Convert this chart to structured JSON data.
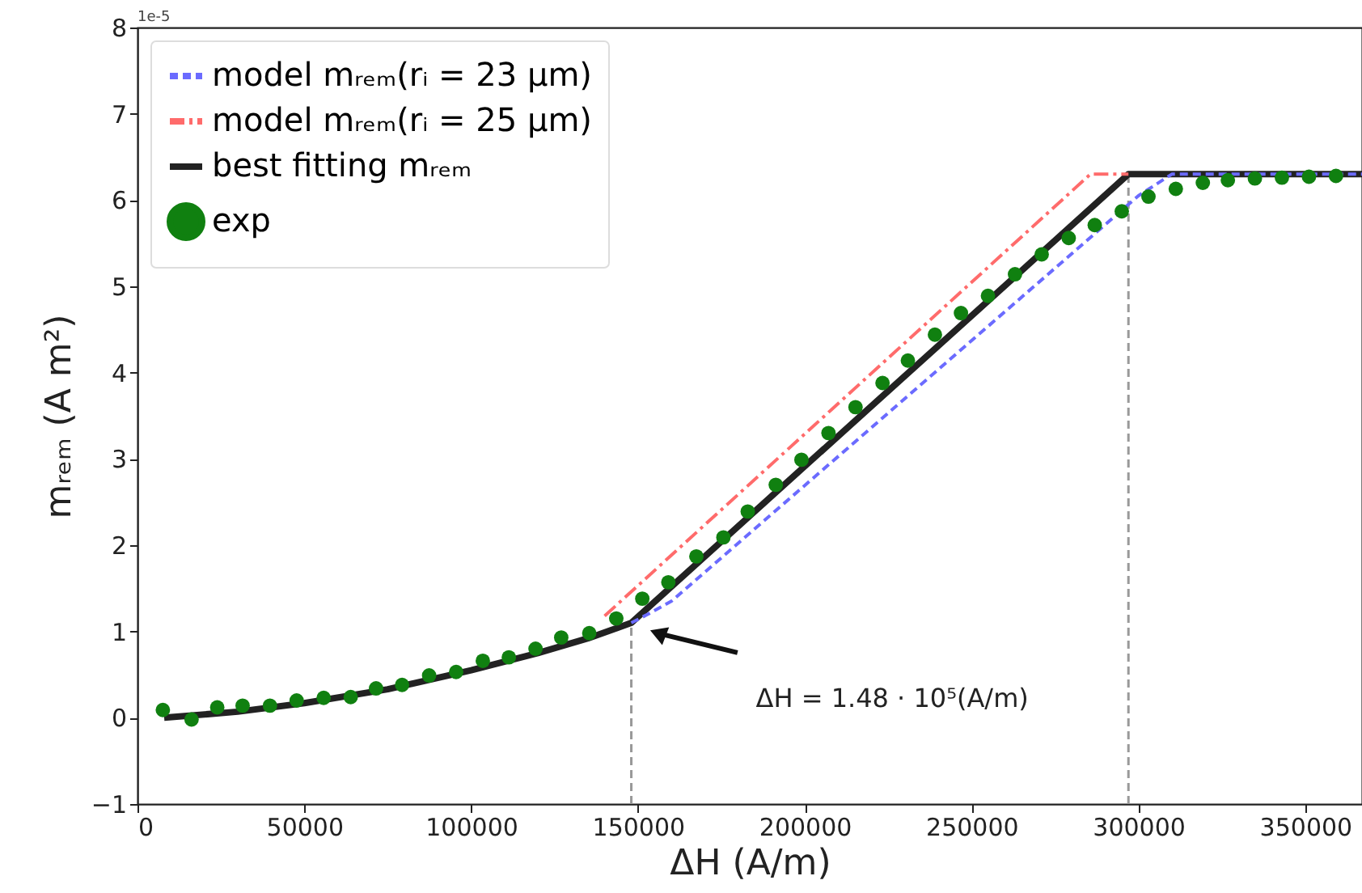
{
  "chart_data": {
    "type": "line",
    "xlabel": "ΔH (A/m)",
    "ylabel": "mᵣₑₘ (A m²)",
    "xlim": [
      0,
      367000
    ],
    "xticks": [
      0,
      50000,
      100000,
      150000,
      200000,
      250000,
      300000,
      350000
    ],
    "ylim": [
      -1,
      8
    ],
    "yticks": [
      -1,
      0,
      1,
      2,
      3,
      4,
      5,
      6,
      7,
      8
    ],
    "legend": "top left",
    "series": [
      {
        "name": "model mᵣₑₘ(rᵢ = 23 μm)",
        "type": "line",
        "line_style": "dashed",
        "color": "#6b6bff",
        "x": [
          148000,
          153000,
          160000,
          300000,
          310000,
          367000
        ],
        "values": [
          1.1,
          1.2,
          1.35,
          6.05,
          6.3,
          6.3
        ]
      },
      {
        "name": "model mᵣₑₘ(rᵢ = 25 μm)",
        "type": "line",
        "line_style": "dashdot",
        "color": "#ff6b6b",
        "x": [
          140000,
          285600,
          297000
        ],
        "values": [
          1.18,
          6.3,
          6.3
        ]
      },
      {
        "name": "best fitting mᵣₑₘ",
        "type": "line",
        "line_style": "solid",
        "color": "#222222",
        "x": [
          8000,
          30000,
          50000,
          75000,
          100000,
          120000,
          135000,
          148000,
          297000,
          367000
        ],
        "values": [
          0,
          0.07,
          0.17,
          0.33,
          0.55,
          0.75,
          0.92,
          1.1,
          6.3,
          6.3
        ]
      },
      {
        "name": "exp",
        "type": "scatter",
        "marker": "circle",
        "color": "#108010",
        "x": [
          7600,
          16200,
          23900,
          31500,
          39700,
          47700,
          55800,
          63900,
          71500,
          79300,
          87400,
          95500,
          103500,
          111300,
          119300,
          127000,
          135400,
          143500,
          151300,
          159100,
          167500,
          175600,
          182900,
          191300,
          199000,
          207100,
          215200,
          223300,
          230900,
          239000,
          246800,
          254900,
          263000,
          271000,
          279100,
          286900,
          295000,
          303000,
          311200,
          319300,
          326800,
          334900,
          343000,
          351100,
          359200
        ],
        "values": [
          0.09,
          -0.02,
          0.12,
          0.14,
          0.14,
          0.2,
          0.23,
          0.24,
          0.34,
          0.38,
          0.49,
          0.53,
          0.66,
          0.7,
          0.8,
          0.93,
          0.98,
          1.15,
          1.38,
          1.57,
          1.87,
          2.09,
          2.39,
          2.7,
          2.99,
          3.3,
          3.6,
          3.88,
          4.14,
          4.44,
          4.69,
          4.89,
          5.14,
          5.37,
          5.56,
          5.71,
          5.87,
          6.04,
          6.13,
          6.2,
          6.23,
          6.25,
          6.26,
          6.27,
          6.28
        ]
      }
    ],
    "ref_lines": [
      {
        "axis": "x",
        "value": 148000,
        "color": "#999999",
        "line_style": "dashed"
      },
      {
        "axis": "x",
        "value": 297000,
        "color": "#999999",
        "line_style": "dashed"
      }
    ],
    "annotations": [
      "ΔH = 1.48 · 10⁵(A/m)",
      "1e-5"
    ]
  }
}
